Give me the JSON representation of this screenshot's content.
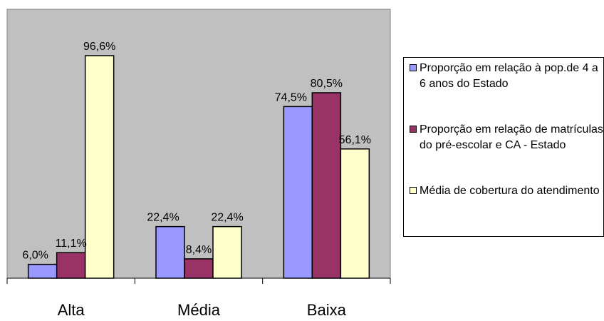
{
  "chart_data": {
    "type": "bar",
    "categories": [
      "Alta",
      "Média",
      "Baixa"
    ],
    "series": [
      {
        "name": "Proporção em relação à pop.de 4 a 6 anos do Estado",
        "values": [
          6.0,
          22.4,
          74.5
        ],
        "labels": [
          "6,0%",
          "22,4%",
          "74,5%"
        ],
        "color": "#9999FF"
      },
      {
        "name": "Proporção em relação de matrículas do pré-escolar e CA - Estado",
        "values": [
          11.1,
          8.4,
          80.5
        ],
        "labels": [
          "11,1%",
          "8,4%",
          "80,5%"
        ],
        "color": "#993366"
      },
      {
        "name": "Média de cobertura do atendimento",
        "values": [
          96.6,
          22.4,
          56.1
        ],
        "labels": [
          "96,6%",
          "22,4%",
          "56,1%"
        ],
        "color": "#FFFFCC"
      }
    ],
    "ylim": [
      0,
      100
    ],
    "grid": false,
    "plot_background": "#C0C0C0",
    "legend_position": "right"
  }
}
